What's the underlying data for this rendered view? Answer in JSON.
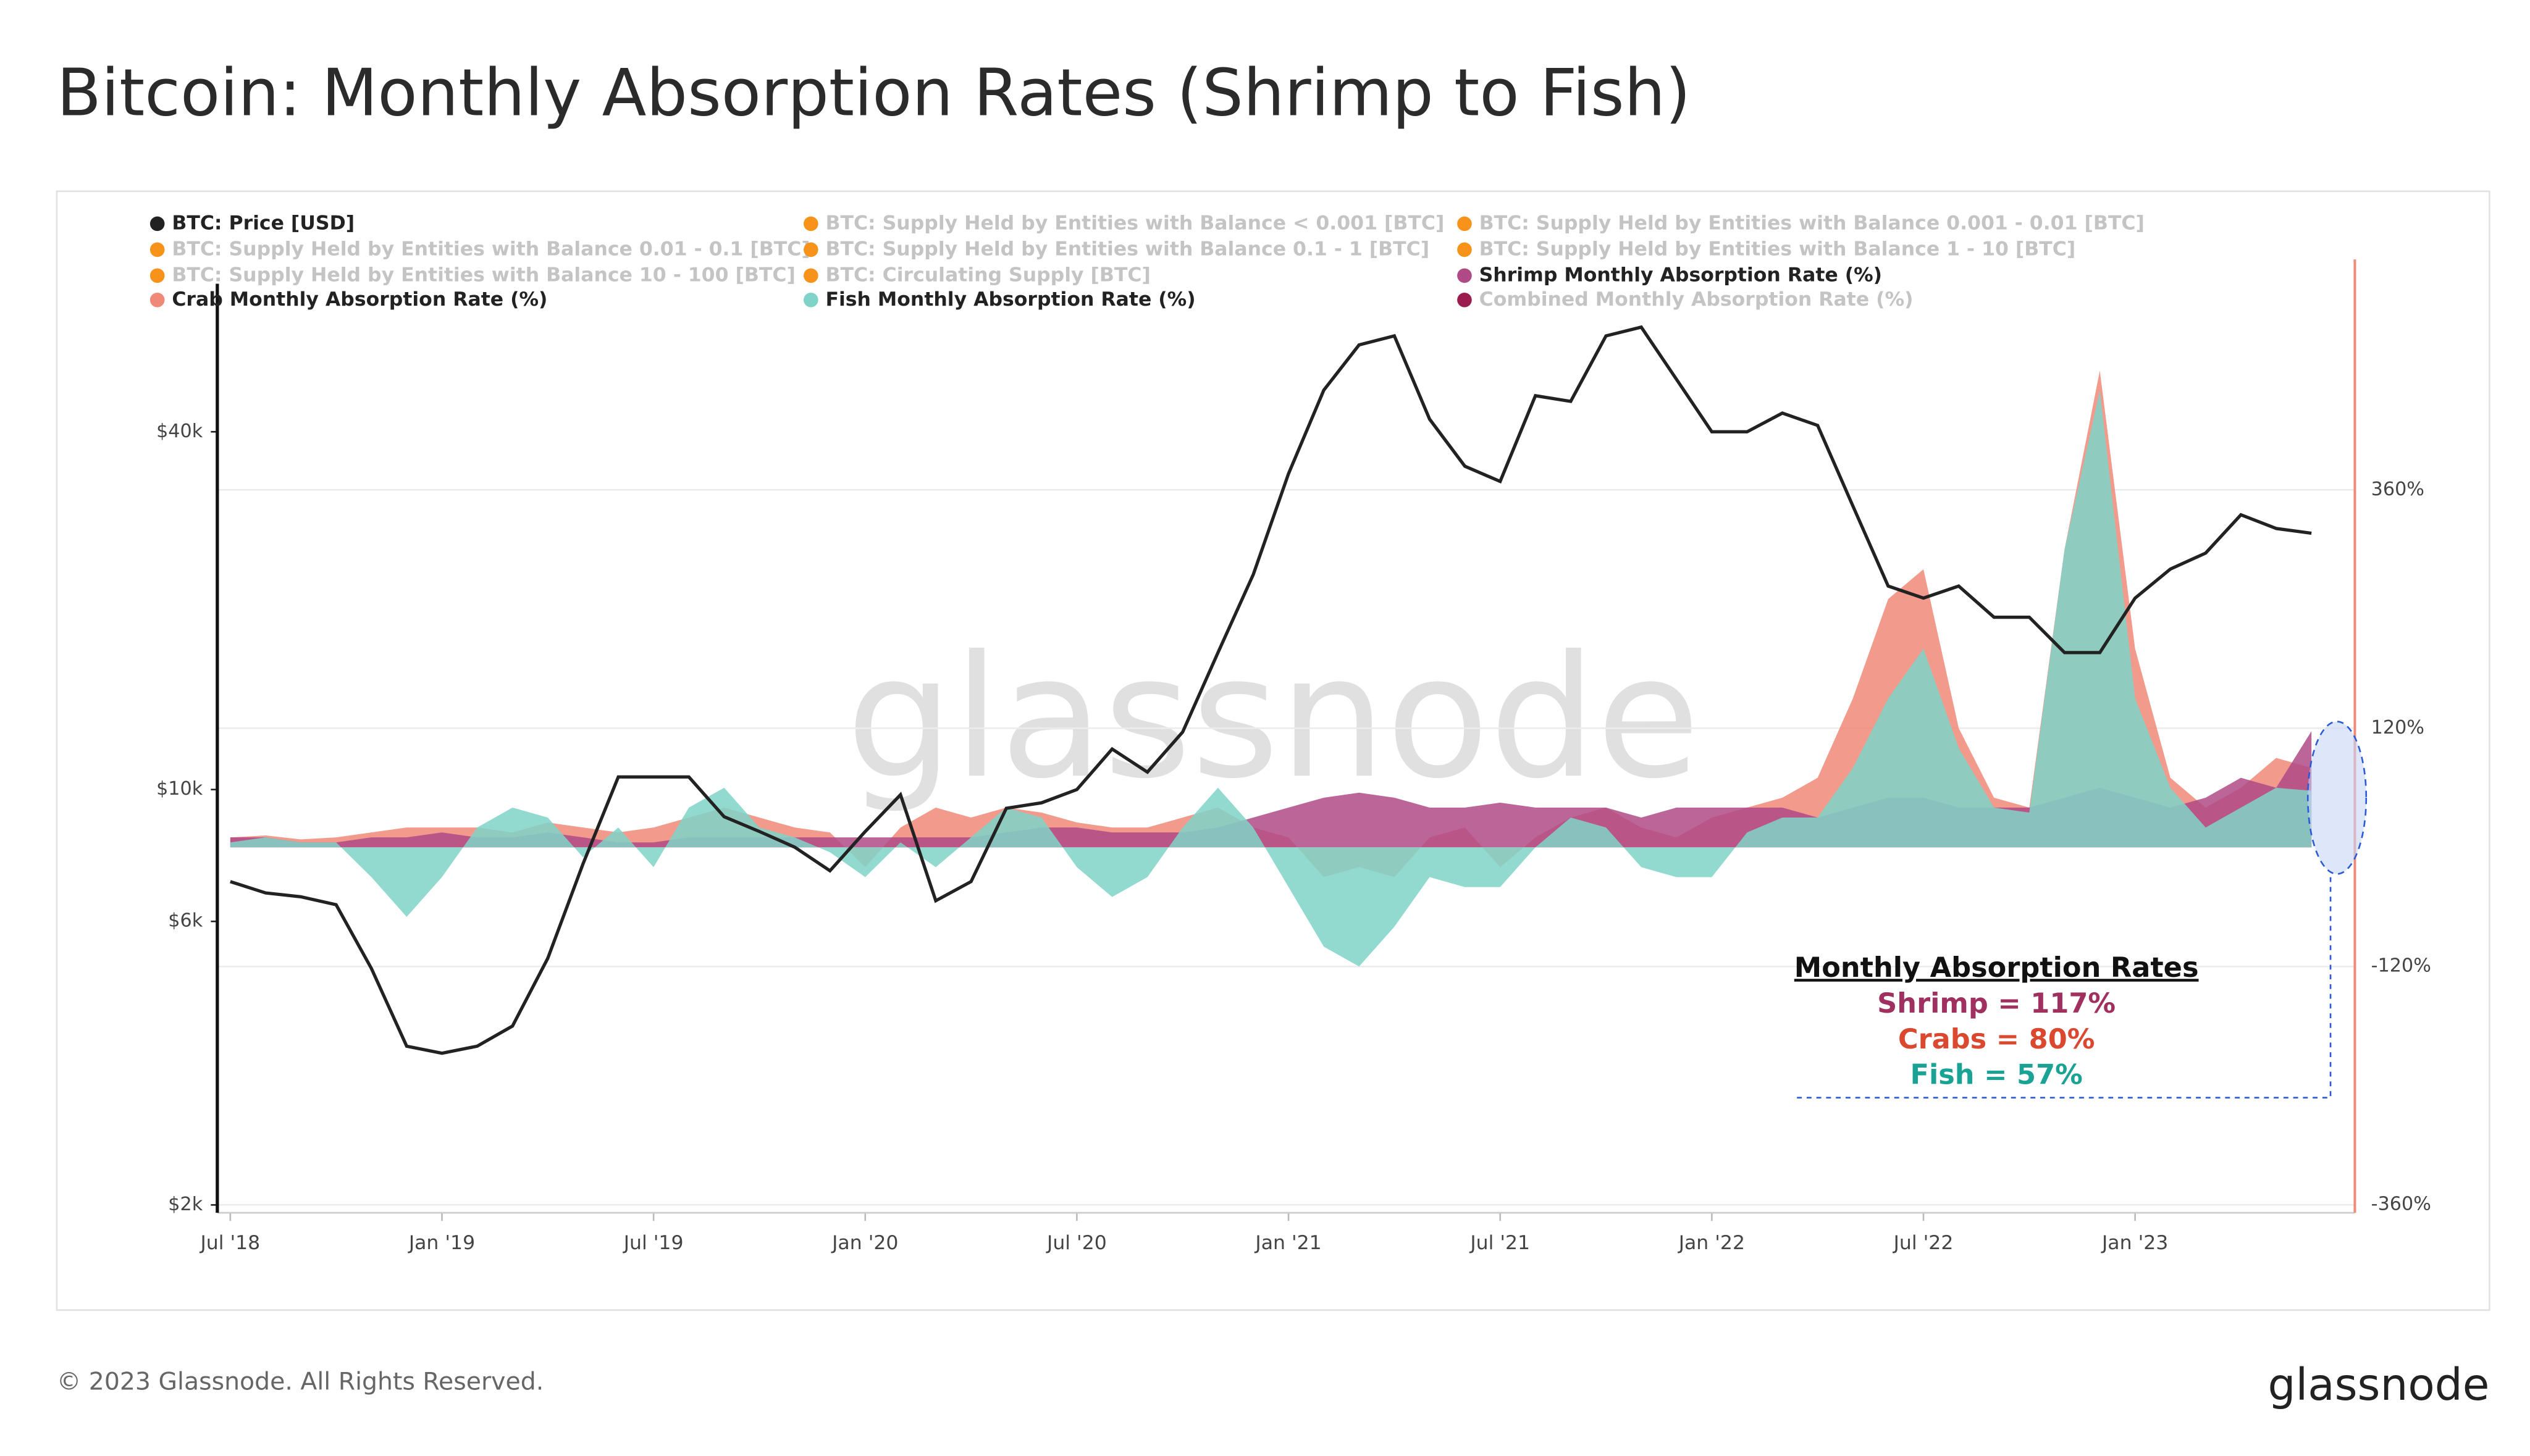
{
  "chart_data": {
    "type": "line-area",
    "title": "Bitcoin: Monthly Absorption Rates (Shrimp to Fish)",
    "watermark": "glassnode",
    "x": [
      "2018-07",
      "2018-08",
      "2018-09",
      "2018-10",
      "2018-11",
      "2018-12",
      "2019-01",
      "2019-02",
      "2019-03",
      "2019-04",
      "2019-05",
      "2019-06",
      "2019-07",
      "2019-08",
      "2019-09",
      "2019-10",
      "2019-11",
      "2019-12",
      "2020-01",
      "2020-02",
      "2020-03",
      "2020-04",
      "2020-05",
      "2020-06",
      "2020-07",
      "2020-08",
      "2020-09",
      "2020-10",
      "2020-11",
      "2020-12",
      "2021-01",
      "2021-02",
      "2021-03",
      "2021-04",
      "2021-05",
      "2021-06",
      "2021-07",
      "2021-08",
      "2021-09",
      "2021-10",
      "2021-11",
      "2021-12",
      "2022-01",
      "2022-02",
      "2022-03",
      "2022-04",
      "2022-05",
      "2022-06",
      "2022-07",
      "2022-08",
      "2022-09",
      "2022-10",
      "2022-11",
      "2022-12",
      "2023-01",
      "2023-02",
      "2023-03",
      "2023-04",
      "2023-05",
      "2023-06"
    ],
    "xlim": [
      "2018-07",
      "2023-07"
    ],
    "xticks": [
      {
        "value": "2018-07",
        "label": "Jul '18"
      },
      {
        "value": "2019-01",
        "label": "Jan '19"
      },
      {
        "value": "2019-07",
        "label": "Jul '19"
      },
      {
        "value": "2020-01",
        "label": "Jan '20"
      },
      {
        "value": "2020-07",
        "label": "Jul '20"
      },
      {
        "value": "2021-01",
        "label": "Jan '21"
      },
      {
        "value": "2021-07",
        "label": "Jul '21"
      },
      {
        "value": "2022-01",
        "label": "Jan '22"
      },
      {
        "value": "2022-07",
        "label": "Jul '22"
      },
      {
        "value": "2023-01",
        "label": "Jan '23"
      }
    ],
    "ylim": [
      1940,
      78000
    ],
    "yscale": "log",
    "yticks": [
      {
        "value": 2000,
        "label": "$2k"
      },
      {
        "value": 6000,
        "label": "$6k"
      },
      {
        "value": 10000,
        "label": "$10k"
      },
      {
        "value": 40000,
        "label": "$40k"
      }
    ],
    "y2lim": [
      -368,
      592
    ],
    "y2ticks": [
      {
        "value": -360,
        "label": "-360%"
      },
      {
        "value": -120,
        "label": "-120%"
      },
      {
        "value": 120,
        "label": "120%"
      },
      {
        "value": 360,
        "label": "360%"
      }
    ],
    "grid": true,
    "series": [
      {
        "name": "BTC: Price [USD]",
        "color": "#222222",
        "axis": "y",
        "values": [
          7000,
          6700,
          6600,
          6400,
          5000,
          3700,
          3600,
          3700,
          4000,
          5200,
          7500,
          10500,
          10500,
          10500,
          9000,
          8500,
          8000,
          7300,
          8500,
          9800,
          6500,
          7000,
          9300,
          9500,
          10000,
          11700,
          10700,
          12500,
          17000,
          23000,
          34000,
          47000,
          56000,
          58000,
          42000,
          35000,
          33000,
          46000,
          45000,
          58000,
          60000,
          49000,
          40000,
          40000,
          43000,
          41000,
          30000,
          22000,
          21000,
          22000,
          19500,
          19500,
          17000,
          17000,
          21000,
          23500,
          25000,
          29000,
          27500,
          27000
        ]
      },
      {
        "name": "BTC: Supply Held by Entities with Balance < 0.001 [BTC]",
        "color": "#f7931a",
        "visible": false
      },
      {
        "name": "BTC: Supply Held by Entities with Balance 0.001 - 0.01 [BTC]",
        "color": "#f7931a",
        "visible": false
      },
      {
        "name": "BTC: Supply Held by Entities with Balance 0.01 - 0.1 [BTC]",
        "color": "#f7931a",
        "visible": false
      },
      {
        "name": "BTC: Supply Held by Entities with Balance 0.1 - 1 [BTC]",
        "color": "#f7931a",
        "visible": false
      },
      {
        "name": "BTC: Supply Held by Entities with Balance 1 - 10 [BTC]",
        "color": "#f7931a",
        "visible": false
      },
      {
        "name": "BTC: Supply Held by Entities with Balance 10 - 100 [BTC]",
        "color": "#f7931a",
        "visible": false
      },
      {
        "name": "BTC: Circulating Supply [BTC]",
        "color": "#f7931a",
        "visible": false
      },
      {
        "name": "Shrimp Monthly Absorption Rate (%)",
        "color": "#b04a86",
        "axis": "y2",
        "values": [
          10,
          10,
          5,
          5,
          10,
          10,
          15,
          10,
          10,
          15,
          10,
          5,
          5,
          10,
          10,
          10,
          10,
          10,
          10,
          10,
          10,
          10,
          15,
          20,
          20,
          15,
          15,
          15,
          20,
          30,
          40,
          50,
          55,
          50,
          40,
          40,
          45,
          40,
          40,
          40,
          30,
          40,
          40,
          40,
          40,
          30,
          40,
          50,
          50,
          40,
          40,
          40,
          50,
          60,
          50,
          40,
          50,
          70,
          60,
          117
        ]
      },
      {
        "name": "Crab Monthly Absorption Rate (%)",
        "color": "#f08a78",
        "axis": "y2",
        "values": [
          10,
          12,
          8,
          10,
          15,
          20,
          20,
          20,
          15,
          25,
          20,
          15,
          20,
          30,
          40,
          30,
          20,
          15,
          -20,
          20,
          40,
          30,
          40,
          35,
          25,
          20,
          20,
          30,
          40,
          20,
          10,
          -30,
          -20,
          -30,
          10,
          20,
          -20,
          10,
          30,
          40,
          20,
          10,
          30,
          40,
          50,
          70,
          150,
          250,
          280,
          120,
          50,
          40,
          300,
          480,
          200,
          70,
          40,
          60,
          90,
          80
        ]
      },
      {
        "name": "Fish Monthly Absorption Rate (%)",
        "color": "#7fd3c8",
        "axis": "y2",
        "values": [
          5,
          10,
          5,
          5,
          -30,
          -70,
          -30,
          20,
          40,
          30,
          -10,
          20,
          -20,
          40,
          60,
          20,
          10,
          -5,
          -30,
          5,
          -20,
          10,
          40,
          30,
          -20,
          -50,
          -30,
          20,
          60,
          20,
          -40,
          -100,
          -120,
          -80,
          -30,
          -40,
          -40,
          0,
          30,
          20,
          -20,
          -30,
          -30,
          15,
          30,
          30,
          80,
          150,
          200,
          100,
          40,
          35,
          300,
          460,
          150,
          60,
          20,
          40,
          60,
          57
        ]
      },
      {
        "name": "Combined Monthly Absorption Rate (%)",
        "color": "#9b1c4e",
        "visible": false
      }
    ],
    "annotation": {
      "title": "Monthly Absorption Rates",
      "lines": [
        {
          "text": "Shrimp = 117%",
          "color": "#a0305f"
        },
        {
          "text": "Crabs = 80%",
          "color": "#d9482f"
        },
        {
          "text": "Fish = 57%",
          "color": "#1aa394"
        }
      ]
    }
  },
  "footer": {
    "copyright": "© 2023 Glassnode. All Rights Reserved.",
    "logo": "glassnode"
  }
}
